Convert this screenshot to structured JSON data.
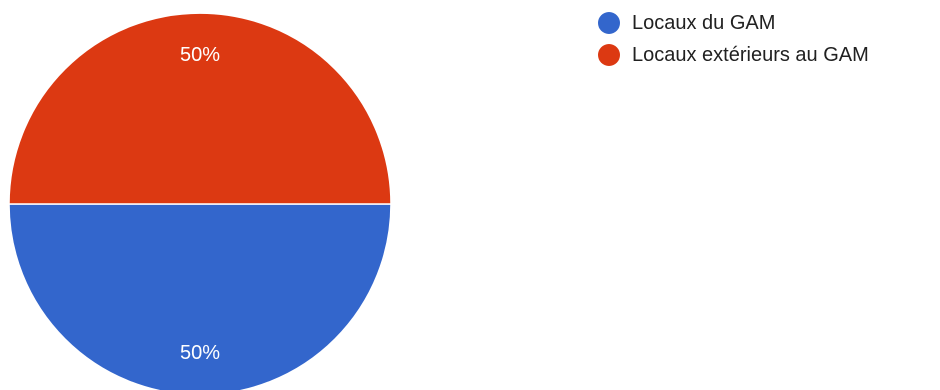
{
  "chart_data": {
    "type": "pie",
    "slices": [
      {
        "label": "Locaux du GAM",
        "value": 50,
        "display": "50%",
        "color": "#3366cc"
      },
      {
        "label": "Locaux extérieurs au GAM",
        "value": 50,
        "display": "50%",
        "color": "#dc3912"
      }
    ],
    "legend": "top-right",
    "title": ""
  }
}
